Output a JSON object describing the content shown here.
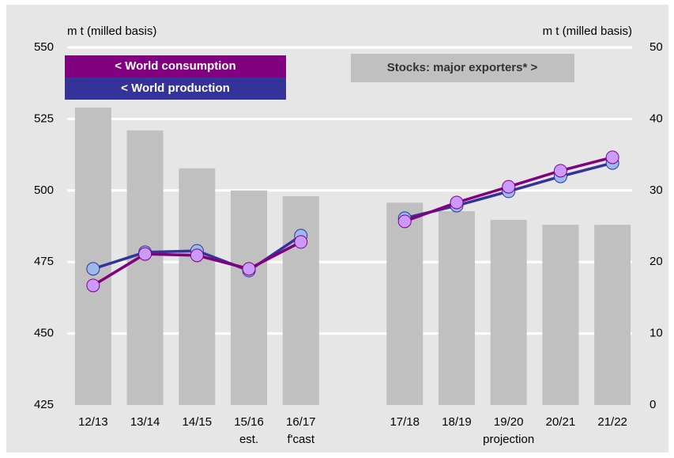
{
  "chart_data": {
    "type": "combo",
    "ylabel": "m t (milled basis)",
    "y2label": "m t (milled basis)",
    "categories": [
      "12/13",
      "13/14",
      "14/15",
      "15/16",
      "16/17",
      null,
      "17/18",
      "18/19",
      "19/20",
      "20/21",
      "21/22"
    ],
    "sublabels": [
      null,
      null,
      null,
      "est.",
      "f'cast",
      null,
      null,
      null,
      null,
      null,
      null
    ],
    "annotation": "projection",
    "ylim": [
      425,
      550
    ],
    "yticks": [
      425,
      450,
      475,
      500,
      525,
      550
    ],
    "y2lim": [
      0,
      50
    ],
    "y2ticks": [
      0,
      10,
      20,
      30,
      40,
      50
    ],
    "grid": true,
    "series": [
      {
        "name": "Stocks: major exporters* >",
        "type": "bar",
        "axis": "y2",
        "color": "#c0c0c0",
        "values": [
          41.6,
          38.4,
          33.1,
          30.0,
          29.2,
          null,
          28.3,
          27.1,
          25.9,
          25.2,
          25.2
        ]
      },
      {
        "name": "< World production",
        "type": "line",
        "color": "#333399",
        "marker_color": "#9bb9ea",
        "values": [
          472.6,
          478.4,
          478.9,
          472.0,
          484.2,
          null,
          490.3,
          494.7,
          499.7,
          504.9,
          509.6
        ]
      },
      {
        "name": "< World consumption",
        "type": "line",
        "color": "#800080",
        "marker_color": "#cc99ff",
        "values": [
          466.8,
          477.8,
          477.3,
          472.6,
          482.0,
          null,
          489.2,
          495.8,
          501.3,
          506.9,
          511.6
        ]
      }
    ]
  }
}
